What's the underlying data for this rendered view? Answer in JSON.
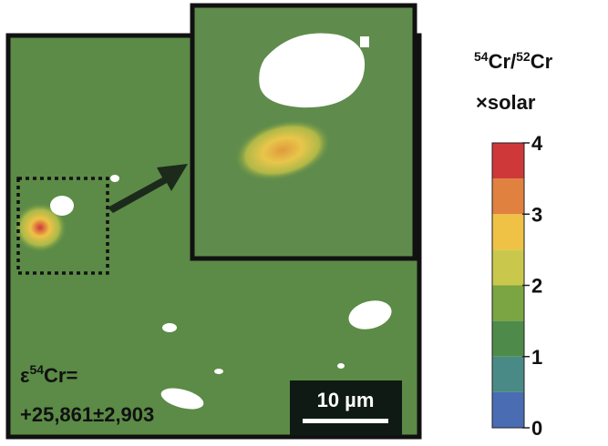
{
  "colorbar": {
    "title": {
      "line1": [
        "54",
        "Cr/",
        "52",
        "Cr"
      ],
      "line2": "×solar"
    },
    "lim": [
      0,
      4
    ],
    "ticks": [
      0,
      1,
      2,
      3,
      4
    ],
    "colors": [
      "#4a6cb3",
      "#4a8a86",
      "#4e8b4a",
      "#7ba443",
      "#c9c84c",
      "#efc246",
      "#e0813f",
      "#cf3838"
    ]
  },
  "annotation": {
    "line1": [
      "ε",
      "54",
      "Cr="
    ],
    "line2": "+25,861±2,903"
  },
  "scale_bar": "10 µm"
}
